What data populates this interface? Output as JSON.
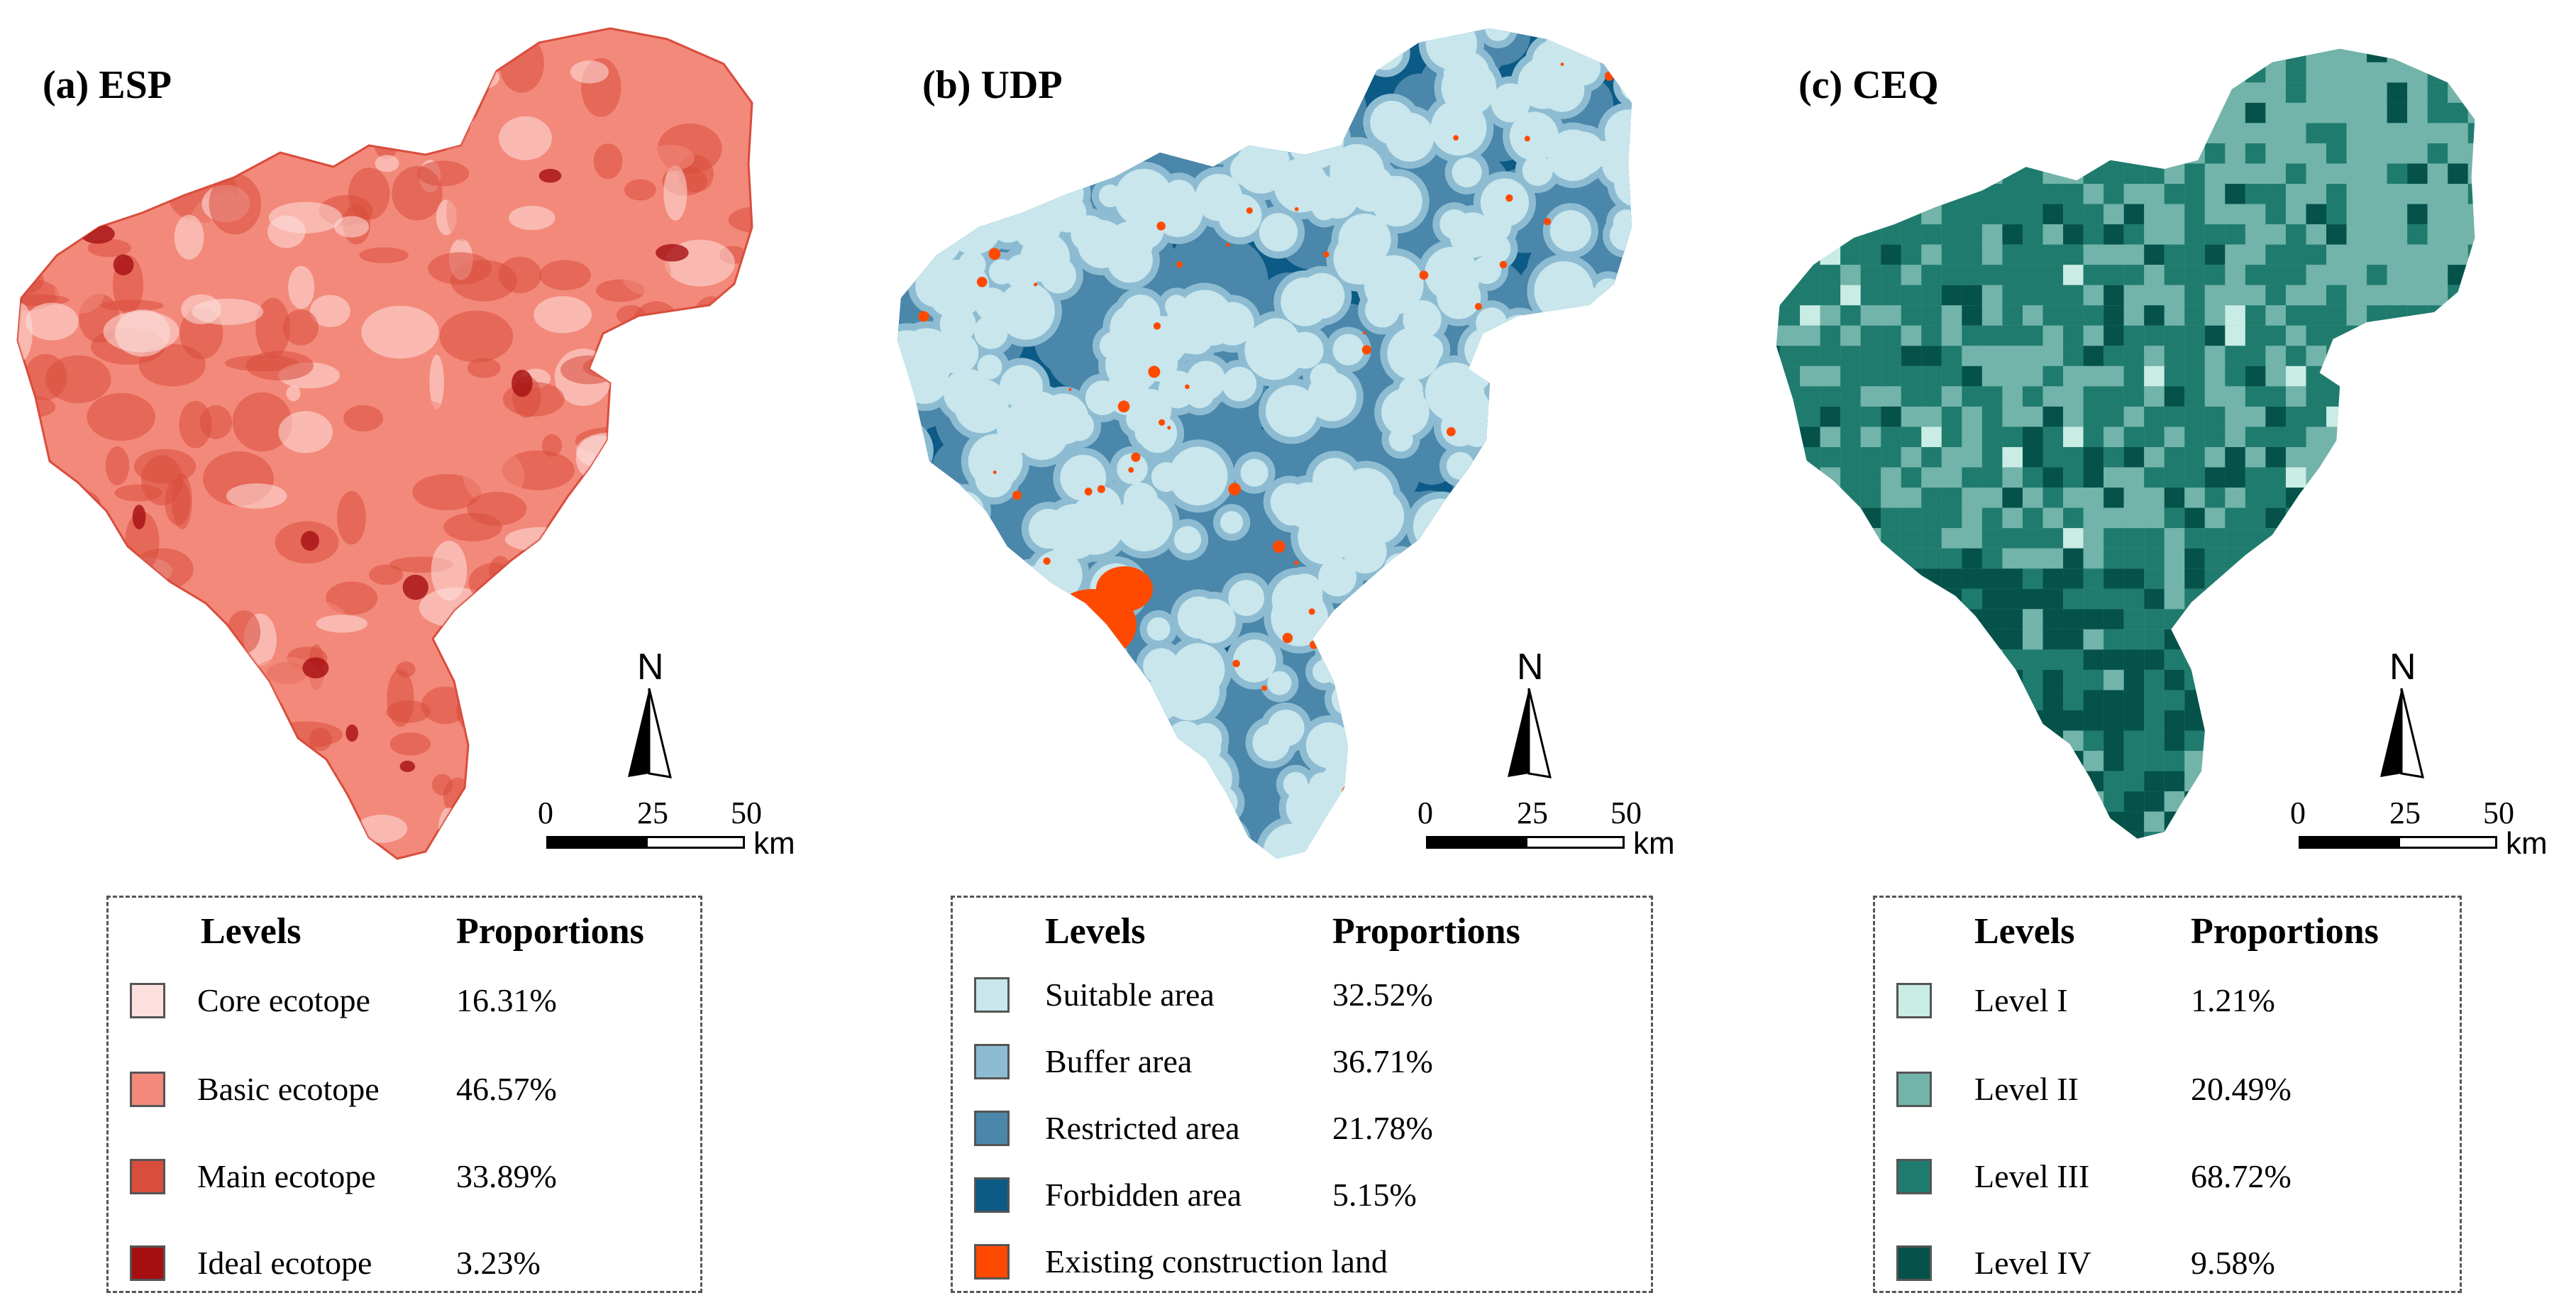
{
  "panels": [
    {
      "title": "(a) ESP",
      "theme": "esp",
      "palette": [
        "#fde0de",
        "#f3897a",
        "#d94d3c",
        "#a50f12"
      ],
      "legend": {
        "header_levels": "Levels",
        "header_proportions": "Proportions",
        "items": [
          {
            "label": "Core ecotope",
            "value": "16.31%",
            "color": "#fde0de"
          },
          {
            "label": "Basic ecotope",
            "value": "46.57%",
            "color": "#f3897a"
          },
          {
            "label": "Main ecotope",
            "value": "33.89%",
            "color": "#d94d3c"
          },
          {
            "label": "Ideal ecotope",
            "value": "3.23%",
            "color": "#a50f12"
          }
        ]
      }
    },
    {
      "title": "(b) UDP",
      "theme": "udp",
      "palette": [
        "#c8e6ec",
        "#8dbcd2",
        "#4a87aa",
        "#0c5a86",
        "#fe4a00"
      ],
      "legend": {
        "header_levels": "Levels",
        "header_proportions": "Proportions",
        "items": [
          {
            "label": "Suitable area",
            "value": "32.52%",
            "color": "#c8e6ec"
          },
          {
            "label": "Buffer area",
            "value": "36.71%",
            "color": "#8dbcd2"
          },
          {
            "label": "Restricted area",
            "value": "21.78%",
            "color": "#4a87aa"
          },
          {
            "label": "Forbidden area",
            "value": "5.15%",
            "color": "#0c5a86"
          },
          {
            "label": "Existing construction land",
            "value": "",
            "color": "#fe4a00"
          }
        ]
      }
    },
    {
      "title": "(c) CEQ",
      "theme": "ceq",
      "palette": [
        "#c9ece4",
        "#72b3aa",
        "#1f7b6d",
        "#04524a"
      ],
      "legend": {
        "header_levels": "Levels",
        "header_proportions": "Proportions",
        "items": [
          {
            "label": "Level I",
            "value": "1.21%",
            "color": "#c9ece4"
          },
          {
            "label": "Level II",
            "value": "20.49%",
            "color": "#72b3aa"
          },
          {
            "label": "Level III",
            "value": "68.72%",
            "color": "#1f7b6d"
          },
          {
            "label": "Level IV",
            "value": "9.58%",
            "color": "#04524a"
          }
        ]
      }
    }
  ],
  "north_label": "N",
  "scale": {
    "ticks": [
      "0",
      "25",
      "50"
    ],
    "unit": "km"
  }
}
